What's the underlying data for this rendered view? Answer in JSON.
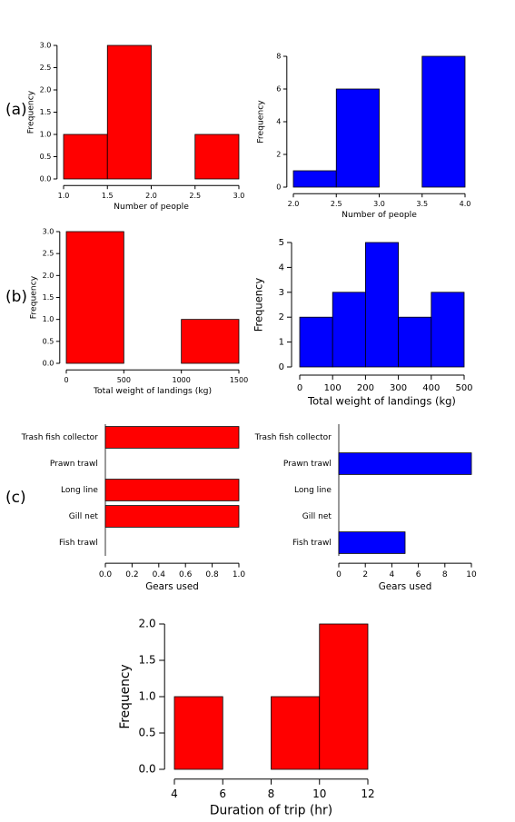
{
  "panel_labels": [
    "(a)",
    "(b)",
    "(c)"
  ],
  "chart_data": [
    {
      "type": "histogram",
      "bins": [
        1.0,
        1.5,
        2.0,
        2.5,
        3.0
      ],
      "values": [
        1,
        3,
        0,
        1
      ],
      "color": "#ff0000",
      "x_label": "Number of people",
      "y_label": "Frequency",
      "xlim": [
        1.0,
        3.0
      ],
      "xticks": [
        {
          "value": 1,
          "label": "1.0"
        },
        1.5,
        {
          "value": 2,
          "label": "2.0"
        },
        2.5,
        {
          "value": 3,
          "label": "3.0"
        }
      ],
      "ylim": [
        0,
        3
      ],
      "yticks": [
        {
          "value": 0,
          "label": "0.0"
        },
        0.5,
        {
          "value": 1,
          "label": "1.0"
        },
        1.5,
        {
          "value": 2,
          "label": "2.0"
        },
        2.5,
        {
          "value": 3,
          "label": "3.0"
        }
      ]
    },
    {
      "type": "histogram",
      "bins": [
        2.0,
        2.5,
        3.0,
        3.5,
        4.0
      ],
      "values": [
        1,
        6,
        0,
        8
      ],
      "color": "#0000ff",
      "x_label": "Number of people",
      "y_label": "Frequency",
      "xlim": [
        2.0,
        4.0
      ],
      "xticks": [
        {
          "value": 2,
          "label": "2.0"
        },
        2.5,
        {
          "value": 3,
          "label": "3.0"
        },
        3.5,
        {
          "value": 4,
          "label": "4.0"
        }
      ],
      "ylim": [
        0,
        8
      ],
      "yticks": [
        0,
        2,
        4,
        6,
        8
      ]
    },
    {
      "type": "histogram",
      "bins": [
        0,
        500,
        1000,
        1500
      ],
      "values": [
        3,
        0,
        1
      ],
      "color": "#ff0000",
      "x_label": "Total weight of landings (kg)",
      "y_label": "Frequency",
      "xlim": [
        0,
        1500
      ],
      "xticks": [
        0,
        500,
        1000,
        1500
      ],
      "ylim": [
        0,
        3
      ],
      "yticks": [
        {
          "value": 0,
          "label": "0.0"
        },
        0.5,
        {
          "value": 1,
          "label": "1.0"
        },
        1.5,
        {
          "value": 2,
          "label": "2.0"
        },
        2.5,
        {
          "value": 3,
          "label": "3.0"
        }
      ]
    },
    {
      "type": "histogram",
      "bins": [
        0,
        100,
        200,
        300,
        400,
        500
      ],
      "values": [
        2,
        3,
        5,
        2,
        3
      ],
      "color": "#0000ff",
      "x_label": "Total weight of landings (kg)",
      "y_label": "Frequency",
      "xlim": [
        0,
        500
      ],
      "xticks": [
        0,
        100,
        200,
        300,
        400,
        500
      ],
      "ylim": [
        0,
        5
      ],
      "yticks": [
        0,
        1,
        2,
        3,
        4,
        5
      ]
    },
    {
      "type": "hbar",
      "categories": [
        "Trash fish collector",
        "Prawn trawl",
        "Long line",
        "Gill net",
        "Fish trawl"
      ],
      "values": [
        1,
        0,
        1,
        1,
        0
      ],
      "color": "#ff0000",
      "x_label": "Gears used",
      "xlim": [
        0,
        1
      ],
      "xticks": [
        {
          "value": 0,
          "label": "0.0"
        },
        0.2,
        0.4,
        0.6,
        0.8,
        {
          "value": 1,
          "label": "1.0"
        }
      ]
    },
    {
      "type": "hbar",
      "categories": [
        "Trash fish collector",
        "Prawn trawl",
        "Long line",
        "Gill net",
        "Fish trawl"
      ],
      "values": [
        0,
        10,
        0,
        0,
        5
      ],
      "color": "#0000ff",
      "x_label": "Gears used",
      "xlim": [
        0,
        10
      ],
      "xticks": [
        0,
        2,
        4,
        6,
        8,
        10
      ]
    },
    {
      "type": "histogram",
      "bins": [
        4,
        6,
        8,
        10,
        12
      ],
      "values": [
        1,
        0,
        1,
        2
      ],
      "color": "#ff0000",
      "x_label": "Duration of trip (hr)",
      "y_label": "Frequency",
      "xlim": [
        4,
        12
      ],
      "xticks": [
        4,
        6,
        8,
        10,
        12
      ],
      "ylim": [
        0,
        2
      ],
      "yticks": [
        {
          "value": 0,
          "label": "0.0"
        },
        0.5,
        {
          "value": 1,
          "label": "1.0"
        },
        1.5,
        {
          "value": 2,
          "label": "2.0"
        }
      ]
    }
  ]
}
